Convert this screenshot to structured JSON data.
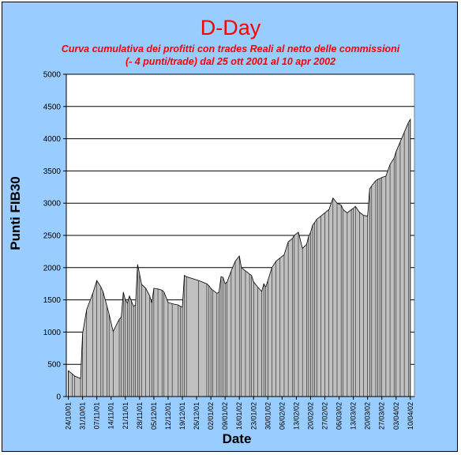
{
  "chart_data": {
    "type": "area",
    "title": "D-Day",
    "subtitle_lines": [
      "Curva cumulativa dei profitti con trades Reali al netto delle commissioni",
      "(- 4 punti/trade) dal 25 ott 2001  al  10 apr 2002"
    ],
    "xlabel": "Date",
    "ylabel": "Punti FIB30",
    "ylim": [
      0,
      5000
    ],
    "yticks": [
      0,
      500,
      1000,
      1500,
      2000,
      2500,
      3000,
      3500,
      4000,
      4500,
      5000
    ],
    "xlim": [
      "2001-10-23",
      "2002-04-12"
    ],
    "xticks": [
      "24/10/01",
      "31/10/01",
      "07/11/01",
      "14/11/01",
      "21/11/01",
      "28/11/01",
      "05/12/01",
      "12/12/01",
      "19/12/01",
      "26/12/01",
      "02/01/02",
      "09/01/02",
      "16/01/02",
      "23/01/02",
      "30/01/02",
      "06/02/02",
      "13/02/02",
      "20/02/02",
      "27/02/02",
      "06/03/02",
      "13/03/02",
      "20/03/02",
      "27/03/02",
      "03/04/02",
      "10/04/02"
    ],
    "grid": "horizontal",
    "legend": "none",
    "fill_color": "#c0c0c0",
    "series": [
      {
        "x": [
          "2001-10-24",
          "2001-10-26",
          "2001-10-27",
          "2001-10-30",
          "2001-10-31",
          "2001-11-02",
          "2001-11-05",
          "2001-11-07",
          "2001-11-09",
          "2001-11-10",
          "2001-11-12",
          "2001-11-13",
          "2001-11-15",
          "2001-11-18",
          "2001-11-19",
          "2001-11-20",
          "2001-11-21",
          "2001-11-22",
          "2001-11-23",
          "2001-11-24",
          "2001-11-25",
          "2001-11-26",
          "2001-11-27",
          "2001-11-28",
          "2001-11-29",
          "2001-12-01",
          "2001-12-03",
          "2001-12-04",
          "2001-12-05",
          "2001-12-07",
          "2001-12-09",
          "2001-12-10",
          "2001-12-12",
          "2001-12-14",
          "2001-12-17",
          "2001-12-18",
          "2001-12-19",
          "2001-12-20",
          "2001-12-21",
          "2001-12-27",
          "2001-12-31",
          "2002-01-01",
          "2002-01-02",
          "2002-01-03",
          "2002-01-05",
          "2002-01-06",
          "2002-01-07",
          "2002-01-08",
          "2002-01-09",
          "2002-01-10",
          "2002-01-12",
          "2002-01-14",
          "2002-01-16",
          "2002-01-17",
          "2002-01-19",
          "2002-01-21",
          "2002-01-22",
          "2002-01-23",
          "2002-01-25",
          "2002-01-27",
          "2002-01-28",
          "2002-01-29",
          "2002-01-30",
          "2002-02-01",
          "2002-02-03",
          "2002-02-05",
          "2002-02-07",
          "2002-02-09",
          "2002-02-11",
          "2002-02-12",
          "2002-02-14",
          "2002-02-16",
          "2002-02-18",
          "2002-02-19",
          "2002-02-20",
          "2002-02-21",
          "2002-02-22",
          "2002-02-23",
          "2002-02-25",
          "2002-02-27",
          "2002-03-01",
          "2002-03-03",
          "2002-03-05",
          "2002-03-07",
          "2002-03-08",
          "2002-03-10",
          "2002-03-12",
          "2002-03-13",
          "2002-03-14",
          "2002-03-16",
          "2002-03-18",
          "2002-03-20",
          "2002-03-21",
          "2002-03-22",
          "2002-03-24",
          "2002-03-25",
          "2002-03-26",
          "2002-03-27",
          "2002-03-29",
          "2002-03-31",
          "2002-04-02",
          "2002-04-03",
          "2002-04-05",
          "2002-04-07",
          "2002-04-09",
          "2002-04-10"
        ],
        "y": [
          400,
          350,
          320,
          280,
          980,
          1350,
          1600,
          1800,
          1700,
          1630,
          1400,
          1280,
          1010,
          1200,
          1230,
          1620,
          1500,
          1450,
          1560,
          1480,
          1400,
          1420,
          2050,
          1900,
          1740,
          1680,
          1560,
          1450,
          1680,
          1670,
          1650,
          1620,
          1460,
          1440,
          1420,
          1400,
          1390,
          1880,
          1860,
          1800,
          1750,
          1720,
          1680,
          1650,
          1600,
          1620,
          1860,
          1850,
          1750,
          1780,
          1950,
          2100,
          2180,
          2000,
          1950,
          1900,
          1880,
          1780,
          1700,
          1630,
          1750,
          1700,
          1800,
          2000,
          2100,
          2150,
          2200,
          2400,
          2450,
          2500,
          2550,
          2300,
          2360,
          2480,
          2550,
          2660,
          2700,
          2750,
          2800,
          2850,
          2900,
          3080,
          3000,
          2970,
          2900,
          2850,
          2900,
          2920,
          2950,
          2860,
          2810,
          2800,
          3220,
          3270,
          3350,
          3370,
          3380,
          3400,
          3420,
          3600,
          3700,
          3800,
          3950,
          4100,
          4250,
          4300
        ]
      }
    ]
  }
}
